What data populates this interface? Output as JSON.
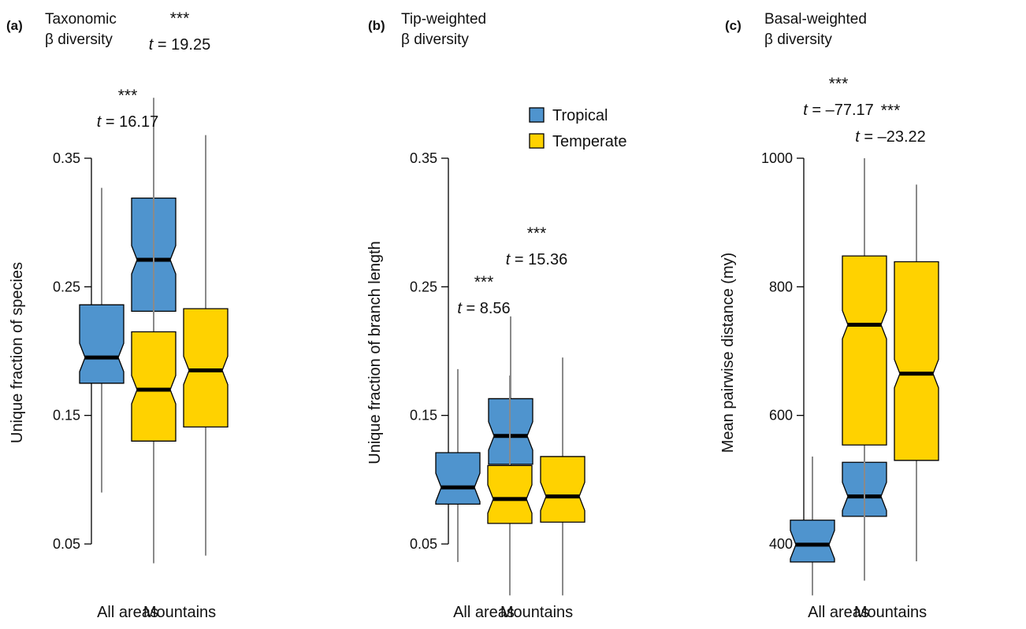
{
  "legend": {
    "items": [
      {
        "label": "Tropical",
        "color": "#4F94CE"
      },
      {
        "label": "Temperate",
        "color": "#FFD200"
      }
    ]
  },
  "chart_data": [
    {
      "type": "box",
      "panel": "(a)",
      "title_lines": [
        "Taxonomic",
        "β diversity"
      ],
      "ylabel": "Unique fraction of species",
      "ylim": [
        0.05,
        0.35
      ],
      "yticks": [
        "0.35",
        "0.25",
        "0.15",
        "0.05"
      ],
      "categories": [
        "All areas",
        "Mountains"
      ],
      "series": [
        {
          "name": "Tropical",
          "boxes": [
            {
              "whisker_low": 0.09,
              "q1": 0.175,
              "median": 0.195,
              "q3": 0.236,
              "whisker_high": 0.327
            },
            {
              "whisker_low": 0.168,
              "q1": 0.231,
              "median": 0.271,
              "q3": 0.319,
              "whisker_high": 0.397
            }
          ]
        },
        {
          "name": "Temperate",
          "boxes": [
            {
              "whisker_low": 0.035,
              "q1": 0.13,
              "median": 0.17,
              "q3": 0.215,
              "whisker_high": 0.341
            },
            {
              "whisker_low": 0.041,
              "q1": 0.141,
              "median": 0.185,
              "q3": 0.233,
              "whisker_high": 0.368
            }
          ]
        }
      ],
      "annotations": [
        {
          "category": "All areas",
          "stars": "***",
          "t_value": "16.17"
        },
        {
          "category": "Mountains",
          "stars": "***",
          "t_value": "19.25"
        }
      ]
    },
    {
      "type": "box",
      "panel": "(b)",
      "title_lines": [
        "Tip-weighted",
        "β diversity"
      ],
      "ylabel": "Unique fraction of branch length",
      "ylim": [
        0.05,
        0.35
      ],
      "yticks": [
        "0.35",
        "0.25",
        "0.15",
        "0.05"
      ],
      "categories": [
        "All areas",
        "Mountains"
      ],
      "series": [
        {
          "name": "Tropical",
          "boxes": [
            {
              "whisker_low": 0.036,
              "q1": 0.081,
              "median": 0.094,
              "q3": 0.121,
              "whisker_high": 0.186
            },
            {
              "whisker_low": 0.072,
              "q1": 0.112,
              "median": 0.134,
              "q3": 0.163,
              "whisker_high": 0.227
            }
          ]
        },
        {
          "name": "Temperate",
          "boxes": [
            {
              "whisker_low": 0.01,
              "q1": 0.066,
              "median": 0.085,
              "q3": 0.111,
              "whisker_high": 0.181
            },
            {
              "whisker_low": 0.01,
              "q1": 0.067,
              "median": 0.087,
              "q3": 0.118,
              "whisker_high": 0.195
            }
          ]
        }
      ],
      "annotations": [
        {
          "category": "All areas",
          "stars": "***",
          "t_value": "8.56"
        },
        {
          "category": "Mountains",
          "stars": "***",
          "t_value": "15.36"
        }
      ]
    },
    {
      "type": "box",
      "panel": "(c)",
      "title_lines": [
        "Basal-weighted",
        "β diversity"
      ],
      "ylabel": "Mean pairwise distance (my)",
      "ylim": [
        400,
        1000
      ],
      "yticks": [
        "1000",
        "800",
        "600",
        "400"
      ],
      "categories": [
        "All areas",
        "Mountains"
      ],
      "series": [
        {
          "name": "Tropical",
          "boxes": [
            {
              "whisker_low": 320,
              "q1": 372,
              "median": 399,
              "q3": 437,
              "whisker_high": 536
            },
            {
              "whisker_low": 343,
              "q1": 443,
              "median": 474,
              "q3": 527,
              "whisker_high": 632
            }
          ]
        },
        {
          "name": "Temperate",
          "boxes": [
            {
              "whisker_low": 364,
              "q1": 554,
              "median": 741,
              "q3": 848,
              "whisker_high": 1000
            },
            {
              "whisker_low": 373,
              "q1": 530,
              "median": 665,
              "q3": 839,
              "whisker_high": 959
            }
          ]
        }
      ],
      "annotations": [
        {
          "category": "All areas",
          "stars": "***",
          "t_value": "–77.17"
        },
        {
          "category": "Mountains",
          "stars": "***",
          "t_value": "–23.22"
        }
      ]
    }
  ]
}
